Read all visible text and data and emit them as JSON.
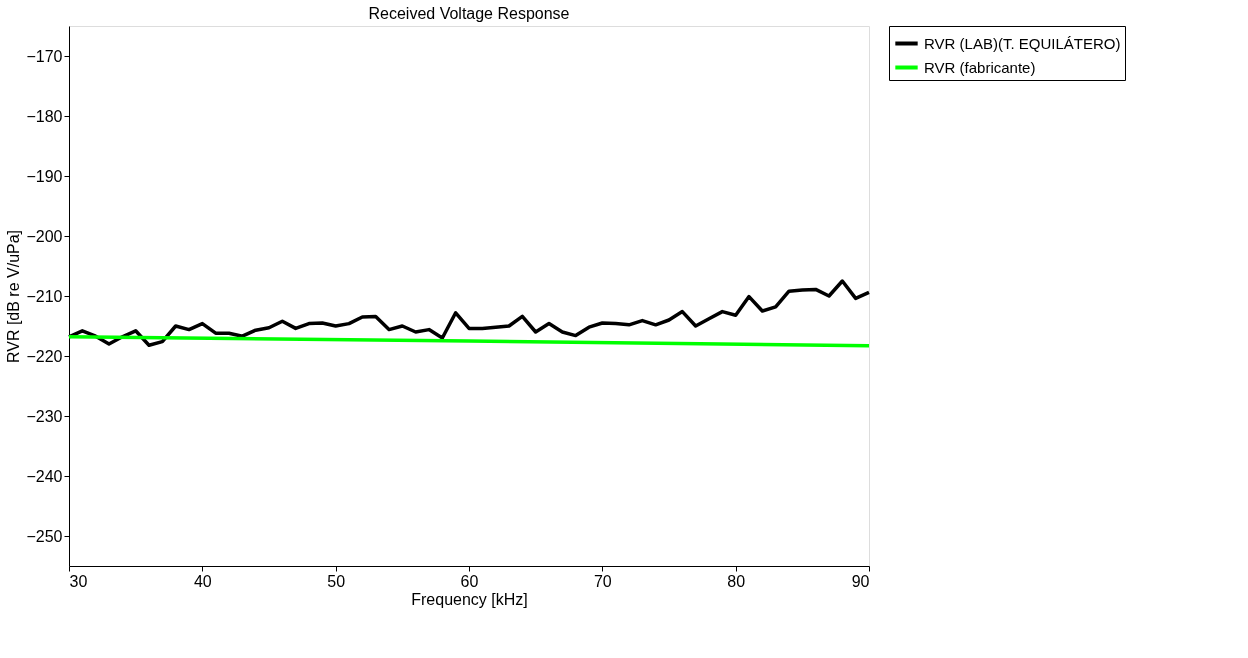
{
  "chart_data": {
    "type": "line",
    "title": "Received Voltage Response",
    "xlabel": "Frequency [kHz]",
    "ylabel": "RVR [dB re V/uPa]",
    "xlim": [
      30,
      90
    ],
    "xticks": [
      30,
      40,
      50,
      60,
      70,
      80,
      90
    ],
    "ylim": [
      -255,
      -165
    ],
    "yticks": [
      -250,
      -240,
      -230,
      -220,
      -210,
      -200,
      -190,
      -180,
      -170
    ],
    "grid": false,
    "legend": "top right",
    "marker": "none",
    "line_style": "solid",
    "series": [
      {
        "name": "RVR (LAB)(T. EQUILÁTERO)",
        "color": "#000000",
        "x": [
          30,
          31,
          32,
          33,
          34,
          35,
          36,
          37,
          38,
          39,
          40,
          41,
          42,
          43,
          44,
          45,
          46,
          47,
          48,
          49,
          50,
          51,
          52,
          53,
          54,
          55,
          56,
          57,
          58,
          59,
          60,
          61,
          62,
          63,
          64,
          65,
          66,
          67,
          68,
          69,
          70,
          71,
          72,
          73,
          74,
          75,
          76,
          77,
          78,
          79,
          80,
          81,
          82,
          83,
          84,
          85,
          86,
          87,
          88,
          89,
          90
        ],
        "values": [
          -216.8,
          -215.8,
          -216.7,
          -218,
          -216.8,
          -215.8,
          -218.2,
          -217.6,
          -215,
          -215.6,
          -214.6,
          -216.2,
          -216.2,
          -216.7,
          -215.7,
          -215.3,
          -214.2,
          -215.4,
          -214.6,
          -214.5,
          -215,
          -214.6,
          -213.5,
          -213.4,
          -215.6,
          -215,
          -216,
          -215.6,
          -217,
          -212.8,
          -215.4,
          -215.4,
          -215.2,
          -215,
          -213.4,
          -216,
          -214.6,
          -216,
          -216.6,
          -215.2,
          -214.5,
          -214.6,
          -214.8,
          -214.1,
          -214.8,
          -214,
          -212.6,
          -215,
          -213.8,
          -212.6,
          -213.2,
          -210.1,
          -212.5,
          -211.8,
          -209.2,
          -209,
          -208.9,
          -210,
          -207.5,
          -210.4,
          -209.4
        ]
      },
      {
        "name": "RVR (fabricante)",
        "color": "#00ff00",
        "x": [
          30,
          60,
          90
        ],
        "values": [
          -216.8,
          -217.5,
          -218.3
        ]
      }
    ]
  }
}
